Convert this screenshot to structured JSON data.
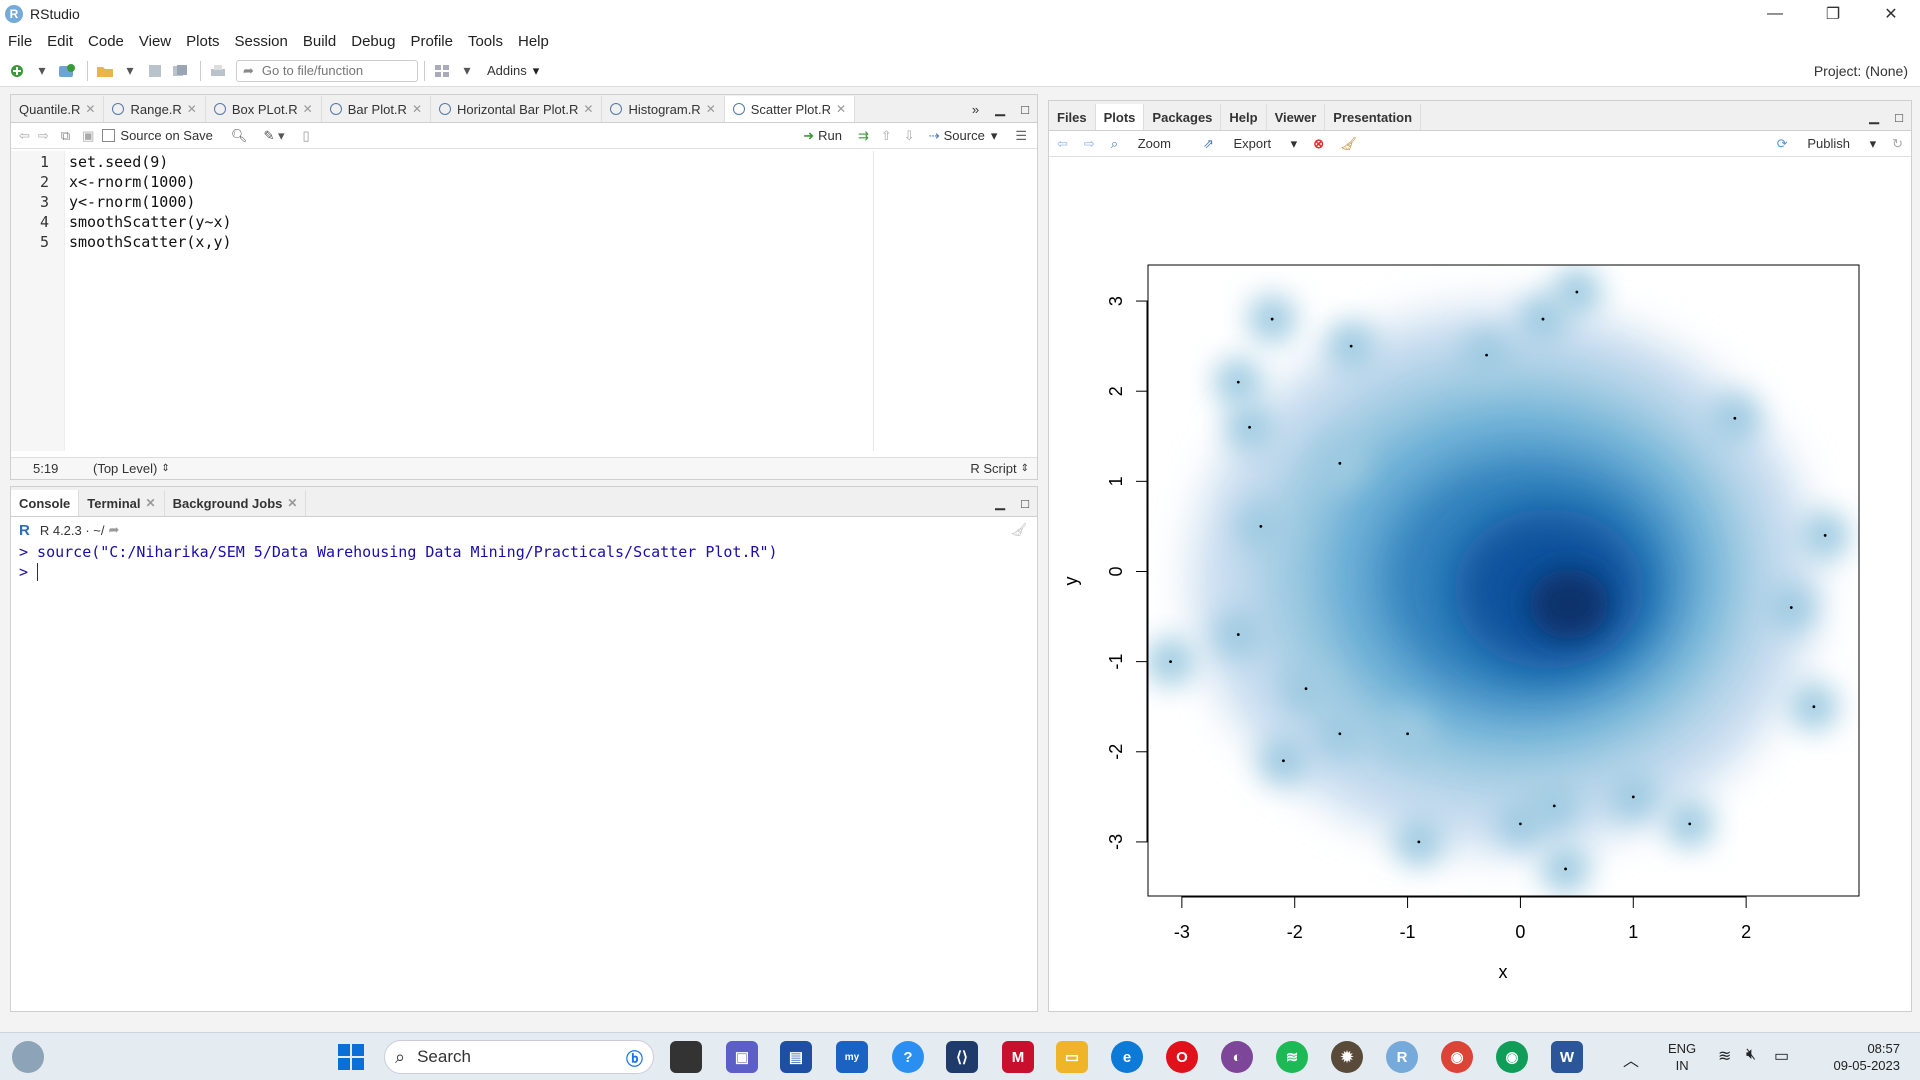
{
  "app": {
    "title": "RStudio",
    "logo_letter": "R"
  },
  "window_controls": {
    "minimize": "—",
    "maximize": "❐",
    "close": "✕"
  },
  "menu": [
    "File",
    "Edit",
    "Code",
    "View",
    "Plots",
    "Session",
    "Build",
    "Debug",
    "Profile",
    "Tools",
    "Help"
  ],
  "toolbar": {
    "goto_placeholder": "Go to file/function",
    "addins": "Addins",
    "project": "Project: (None)"
  },
  "editor": {
    "tabs": [
      {
        "label": "Quantile.R"
      },
      {
        "label": "Range.R"
      },
      {
        "label": "Box PLot.R"
      },
      {
        "label": "Bar Plot.R"
      },
      {
        "label": "Horizontal Bar Plot.R"
      },
      {
        "label": "Histogram.R"
      },
      {
        "label": "Scatter Plot.R"
      }
    ],
    "source_on_save": "Source on Save",
    "run": "Run",
    "source": "Source",
    "lines": [
      "set.seed(9)",
      "x<-rnorm(1000)",
      "y<-rnorm(1000)",
      "smoothScatter(y~x)",
      "smoothScatter(x,y)"
    ],
    "line_numbers": [
      "1",
      "2",
      "3",
      "4",
      "5"
    ],
    "cursor_pos": "5:19",
    "scope": "(Top Level)",
    "file_type": "R Script"
  },
  "console": {
    "tabs": [
      "Console",
      "Terminal",
      "Background Jobs"
    ],
    "version": "R 4.2.3 · ~/",
    "command": "> source(\"C:/Niharika/SEM 5/Data Warehousing Data Mining/Practicals/Scatter Plot.R\")",
    "prompt": ">"
  },
  "viewer": {
    "tabs": [
      "Files",
      "Plots",
      "Packages",
      "Help",
      "Viewer",
      "Presentation"
    ],
    "zoom": "Zoom",
    "export": "Export",
    "publish": "Publish"
  },
  "chart_data": {
    "type": "heatmap",
    "title": "",
    "xlabel": "x",
    "ylabel": "y",
    "xlim": [
      -3.3,
      3.0
    ],
    "ylim": [
      -3.6,
      3.4
    ],
    "xticks": [
      "-3",
      "-2",
      "-1",
      "0",
      "1",
      "2"
    ],
    "yticks": [
      "-3",
      "-2",
      "-1",
      "0",
      "1",
      "2",
      "3"
    ],
    "outlier_points": [
      [
        -2.2,
        2.8
      ],
      [
        -2.5,
        2.1
      ],
      [
        -1.5,
        2.5
      ],
      [
        -0.3,
        2.4
      ],
      [
        0.5,
        3.1
      ],
      [
        0.2,
        2.8
      ],
      [
        1.9,
        1.7
      ],
      [
        -2.4,
        1.6
      ],
      [
        -1.6,
        1.2
      ],
      [
        -2.3,
        0.5
      ],
      [
        -3.1,
        -1.0
      ],
      [
        -2.5,
        -0.7
      ],
      [
        -1.9,
        -1.3
      ],
      [
        -2.1,
        -2.1
      ],
      [
        -1.0,
        -1.8
      ],
      [
        -0.9,
        -3.0
      ],
      [
        0.4,
        -3.3
      ],
      [
        0.0,
        -2.8
      ],
      [
        1.0,
        -2.5
      ],
      [
        1.5,
        -2.8
      ],
      [
        2.6,
        -1.5
      ],
      [
        2.7,
        0.4
      ],
      [
        2.4,
        -0.4
      ],
      [
        -1.6,
        -1.8
      ],
      [
        0.3,
        -2.6
      ]
    ],
    "density_peak": [
      0.4,
      -0.3
    ]
  },
  "taskbar": {
    "search": "Search",
    "lang": "ENG",
    "region": "IN",
    "time": "08:57",
    "date": "09-05-2023",
    "apps": [
      "windows-start",
      "search",
      "bing",
      "task-view",
      "teams",
      "store",
      "mylp",
      "help",
      "vscode",
      "mcafee",
      "explorer",
      "edge",
      "opera",
      "tor",
      "spotify",
      "game",
      "rstudio",
      "chrome-profile",
      "chrome",
      "word"
    ]
  },
  "colors": {
    "accent": "#75aadb",
    "plot_dark": "#08306b",
    "plot_light": "#c6dbef"
  }
}
